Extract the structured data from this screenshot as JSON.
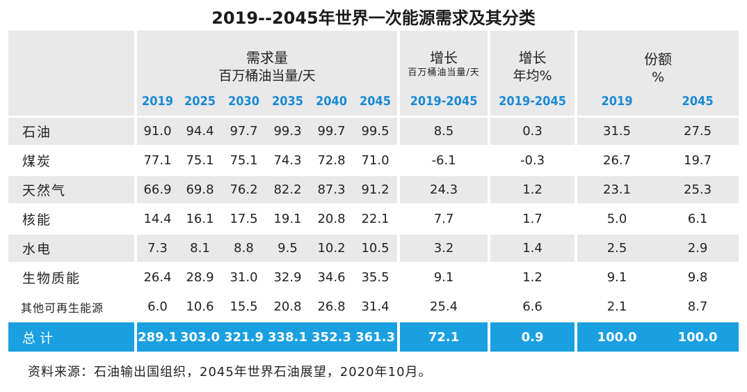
{
  "title": "2019--2045年世界一次能源需求及其分类",
  "header": {
    "demand_title": "需求量",
    "demand_unit": "百万桶油当量/天",
    "increase_title": "增长",
    "increase_unit": "百万桶油当量/天",
    "avg_title": "增长",
    "avg_unit": "年均%",
    "share_title": "份额",
    "share_unit": "%",
    "years": [
      "2019",
      "2025",
      "2030",
      "2035",
      "2040",
      "2045"
    ],
    "increase_period": "2019-2045",
    "avg_period": "2019-2045",
    "share_years": [
      "2019",
      "2045"
    ]
  },
  "rows": [
    {
      "name": "石油",
      "values": [
        "91.0",
        "94.4",
        "97.7",
        "99.3",
        "99.7",
        "99.5"
      ],
      "increase": "8.5",
      "avg": "0.3",
      "share": [
        "31.5",
        "27.5"
      ]
    },
    {
      "name": "煤炭",
      "values": [
        "77.1",
        "75.1",
        "75.1",
        "74.3",
        "72.8",
        "71.0"
      ],
      "increase": "-6.1",
      "avg": "-0.3",
      "share": [
        "26.7",
        "19.7"
      ]
    },
    {
      "name": "天然气",
      "values": [
        "66.9",
        "69.8",
        "76.2",
        "82.2",
        "87.3",
        "91.2"
      ],
      "increase": "24.3",
      "avg": "1.2",
      "share": [
        "23.1",
        "25.3"
      ]
    },
    {
      "name": "核能",
      "values": [
        "14.4",
        "16.1",
        "17.5",
        "19.1",
        "20.8",
        "22.1"
      ],
      "increase": "7.7",
      "avg": "1.7",
      "share": [
        "5.0",
        "6.1"
      ]
    },
    {
      "name": "水电",
      "values": [
        "7.3",
        "8.1",
        "8.8",
        "9.5",
        "10.2",
        "10.5"
      ],
      "increase": "3.2",
      "avg": "1.4",
      "share": [
        "2.5",
        "2.9"
      ]
    },
    {
      "name": "生物质能",
      "values": [
        "26.4",
        "28.9",
        "31.0",
        "32.9",
        "34.6",
        "35.5"
      ],
      "increase": "9.1",
      "avg": "1.2",
      "share": [
        "9.1",
        "9.8"
      ]
    },
    {
      "name": "其他可再生能源",
      "values": [
        "6.0",
        "10.6",
        "15.5",
        "20.8",
        "26.8",
        "31.4"
      ],
      "increase": "25.4",
      "avg": "6.6",
      "share": [
        "2.1",
        "8.7"
      ]
    }
  ],
  "total": {
    "name": "总计",
    "values": [
      "289.1",
      "303.0",
      "321.9",
      "338.1",
      "352.3",
      "361.3"
    ],
    "increase": "72.1",
    "avg": "0.9",
    "share": [
      "100.0",
      "100.0"
    ]
  },
  "source": "资料来源：石油输出国组织，2045年世界石油展望，2020年10月。",
  "colors": {
    "accent": "#1aa0e0",
    "year_text": "#1a8ad4",
    "shade": "#e9e9ea"
  }
}
